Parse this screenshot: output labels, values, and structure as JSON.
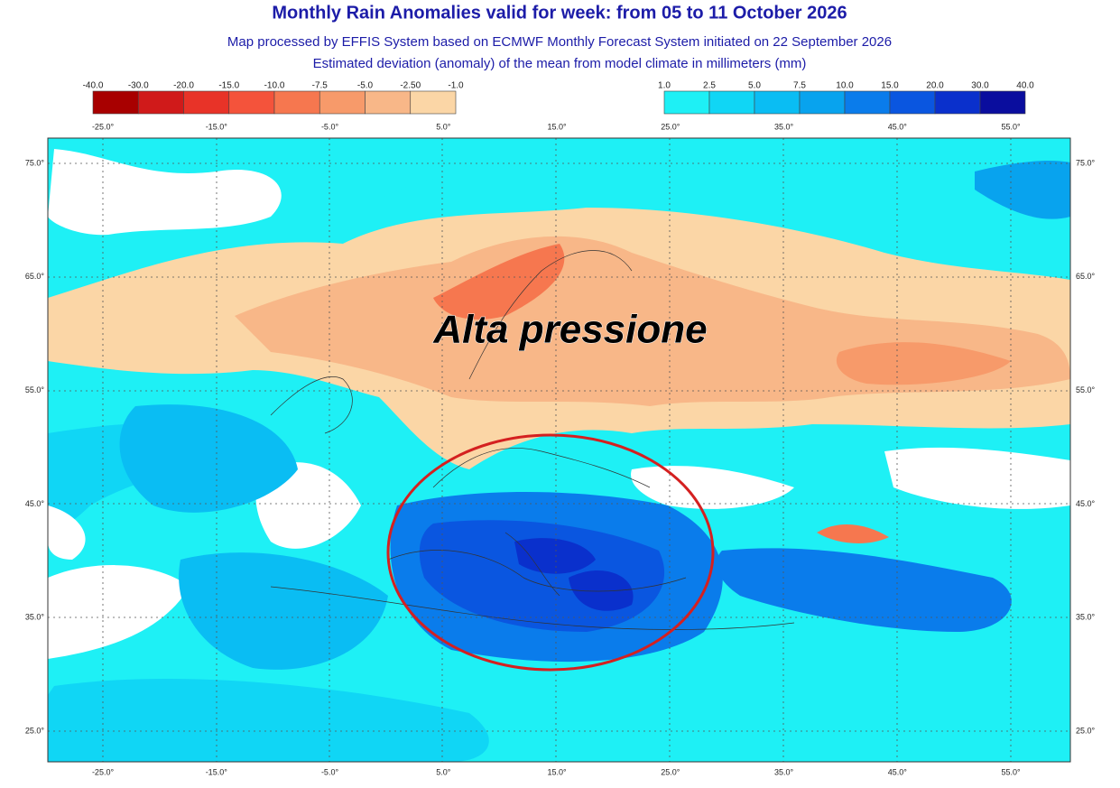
{
  "title": "Monthly Rain Anomalies valid for week: from 05 to 11 October 2026",
  "subtitle": "Map processed by EFFIS System based on ECMWF Monthly Forecast System initiated on 22 September 2026",
  "description": "Estimated deviation (anomaly) of the mean from model climate in millimeters (mm)",
  "legend_negative": {
    "labels": [
      "-40.0",
      "-30.0",
      "-20.0",
      "-15.0",
      "-10.0",
      "-7.5",
      "-5.0",
      "-2.50",
      "-1.0"
    ],
    "colors": [
      "#a80000",
      "#d01a1a",
      "#e83328",
      "#f4533b",
      "#f6774f",
      "#f79a6a",
      "#f8b788",
      "#fbd6a6"
    ]
  },
  "legend_positive": {
    "labels": [
      "1.0",
      "2.5",
      "5.0",
      "7.5",
      "10.0",
      "15.0",
      "20.0",
      "30.0",
      "40.0"
    ],
    "colors": [
      "#1ef0f5",
      "#10d6f5",
      "#0abdf3",
      "#08a3ee",
      "#0a7ceb",
      "#0a56e0",
      "#0a30cc",
      "#0a0d9e"
    ]
  },
  "top_axis_labels": [
    "-25.0°",
    "-15.0°",
    "-5.0°",
    "5.0°",
    "15.0°",
    "25.0°",
    "35.0°",
    "45.0°",
    "55.0°"
  ],
  "bottom_axis_labels": [
    "-25.0°",
    "-15.0°",
    "-5.0°",
    "5.0°",
    "15.0°",
    "25.0°",
    "35.0°",
    "45.0°",
    "55.0°"
  ],
  "left_axis_labels": [
    "75.0°",
    "65.0°",
    "55.0°",
    "45.0°",
    "35.0°",
    "25.0°"
  ],
  "right_axis_labels": [
    "75.0°",
    "65.0°",
    "55.0°",
    "45.0°",
    "35.0°",
    "25.0°"
  ],
  "annotation": "Alta pressione"
}
